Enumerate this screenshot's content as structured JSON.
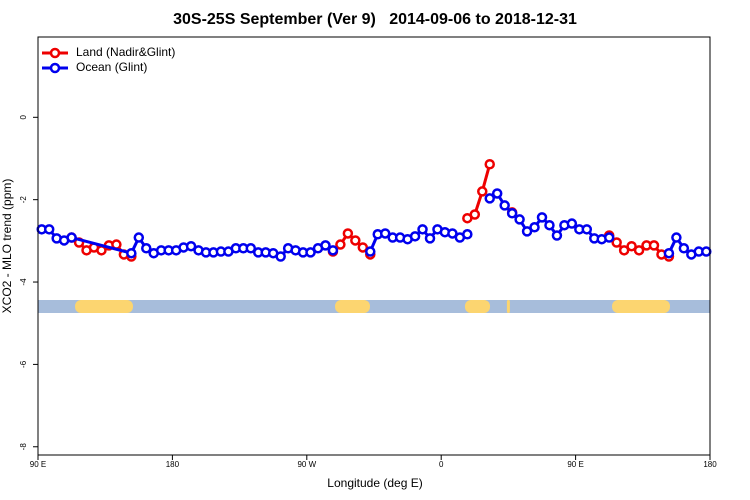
{
  "chart_data": {
    "type": "line",
    "title": "30S-25S September (Ver 9)   2014-09-06 to 2018-12-31",
    "x_label": "Longitude (deg E)",
    "y_label": "XCO2 - MLO trend (ppm)",
    "xlim": [
      90,
      540
    ],
    "xticks": [
      {
        "value": 90,
        "label": "90 E"
      },
      180,
      {
        "value": 270,
        "label": "90 W"
      },
      {
        "value": 360,
        "label": "0"
      },
      {
        "value": 450,
        "label": "90 E"
      },
      {
        "value": 540,
        "label": "180"
      }
    ],
    "ylim": [
      -8.2,
      1.95
    ],
    "yticks": [
      0,
      -2,
      -4,
      -6,
      -8
    ],
    "legend": "top-left",
    "land_color": "#fcd570",
    "ocean_color": "#a7bddb",
    "land_segments": [
      [
        114.8,
        153.6
      ],
      [
        288.9,
        312.3
      ],
      [
        375.9,
        392.7
      ],
      [
        404.0,
        406.0
      ],
      [
        474.4,
        513.2
      ]
    ],
    "series": [
      {
        "name": "Land (Nadir&Glint)",
        "color": "#ee0000",
        "x": [
          112.5,
          117.5,
          122.5,
          127.5,
          132.5,
          137.5,
          142.5,
          147.5,
          152.5,
          157.5,
          287.5,
          292.5,
          297.5,
          302.5,
          307.5,
          312.5,
          317.5,
          377.5,
          382.5,
          387.5,
          392.5,
          397.5,
          407.5,
          412.5,
          472.5,
          477.5,
          482.5,
          487.5,
          492.5,
          497.5,
          502.5,
          507.5,
          512.5
        ],
        "values": [
          -2.92,
          -3.04,
          -3.23,
          -3.16,
          -3.23,
          -3.11,
          -3.09,
          -3.33,
          -3.38,
          null,
          -3.26,
          -3.09,
          -2.82,
          -2.99,
          -3.16,
          -3.33,
          null,
          -2.45,
          -2.36,
          -1.8,
          -1.14,
          null,
          -2.31,
          null,
          -2.87,
          -3.04,
          -3.23,
          -3.13,
          -3.23,
          -3.11,
          -3.11,
          -3.33,
          -3.38
        ]
      },
      {
        "name": "Ocean (Glint)",
        "color": "#0000ee",
        "x": [
          92.5,
          97.5,
          102.5,
          107.5,
          112.5,
          152.5,
          157.5,
          162.5,
          167.5,
          172.5,
          177.5,
          182.5,
          187.5,
          192.5,
          197.5,
          202.5,
          207.5,
          212.5,
          217.5,
          222.5,
          227.5,
          232.5,
          237.5,
          242.5,
          247.5,
          252.5,
          257.5,
          262.5,
          267.5,
          272.5,
          277.5,
          282.5,
          287.5,
          292.5,
          312.5,
          317.5,
          322.5,
          327.5,
          332.5,
          337.5,
          342.5,
          347.5,
          352.5,
          357.5,
          362.5,
          367.5,
          372.5,
          377.5,
          382.5,
          392.5,
          397.5,
          402.5,
          407.5,
          412.5,
          417.5,
          422.5,
          427.5,
          432.5,
          437.5,
          442.5,
          447.5,
          452.5,
          457.5,
          462.5,
          467.5,
          472.5,
          477.5,
          512.5,
          517.5,
          522.5,
          527.5,
          532.5,
          537.5
        ],
        "values": [
          -2.72,
          -2.72,
          -2.94,
          -2.99,
          -2.92,
          -3.3,
          -2.92,
          -3.18,
          -3.3,
          -3.23,
          -3.23,
          -3.23,
          -3.16,
          -3.13,
          -3.23,
          -3.28,
          -3.28,
          -3.26,
          -3.26,
          -3.18,
          -3.18,
          -3.18,
          -3.28,
          -3.28,
          -3.3,
          -3.38,
          -3.18,
          -3.23,
          -3.28,
          -3.28,
          -3.18,
          -3.11,
          -3.23,
          null,
          -3.26,
          -2.84,
          -2.82,
          -2.92,
          -2.92,
          -2.96,
          -2.89,
          -2.72,
          -2.94,
          -2.72,
          -2.79,
          -2.82,
          -2.92,
          -2.84,
          null,
          -1.97,
          -1.85,
          -2.14,
          -2.33,
          -2.48,
          -2.77,
          -2.67,
          -2.43,
          -2.62,
          -2.87,
          -2.62,
          -2.58,
          -2.72,
          -2.72,
          -2.94,
          -2.96,
          -2.92,
          null,
          -3.3,
          -2.92,
          -3.18,
          -3.33,
          -3.26,
          -3.26
        ]
      }
    ]
  }
}
